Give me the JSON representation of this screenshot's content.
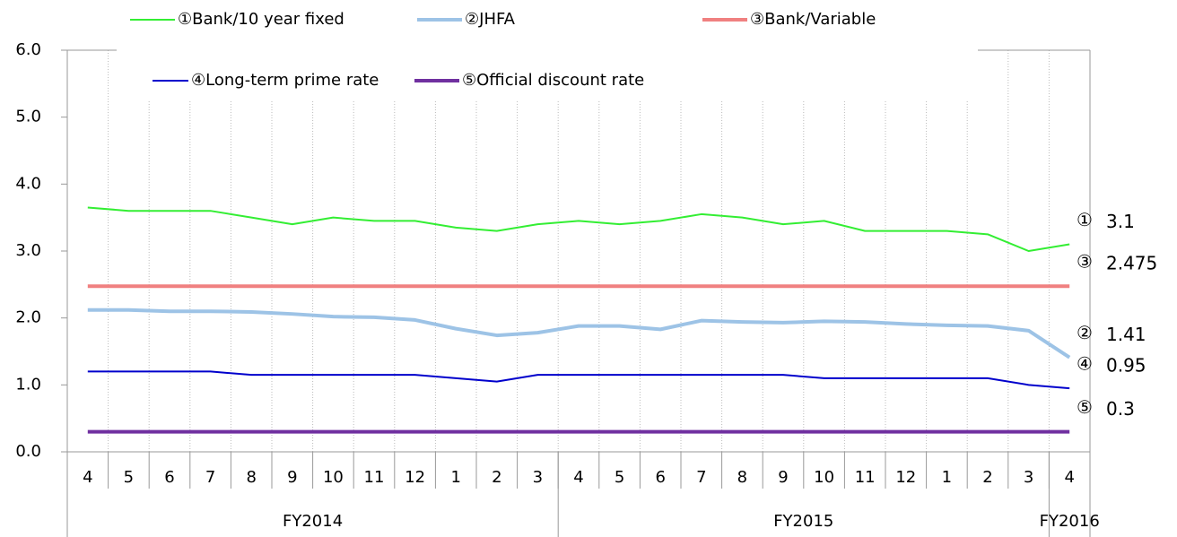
{
  "chart_data": {
    "type": "line",
    "categories": [
      "4",
      "5",
      "6",
      "7",
      "8",
      "9",
      "10",
      "11",
      "12",
      "1",
      "2",
      "3",
      "4",
      "5",
      "6",
      "7",
      "8",
      "9",
      "10",
      "11",
      "12",
      "1",
      "2",
      "3",
      "4"
    ],
    "groups": [
      {
        "label": "FY2014",
        "count": 12
      },
      {
        "label": "FY2015",
        "count": 12
      },
      {
        "label": "FY2016",
        "count": 1
      }
    ],
    "ylim": [
      0,
      6
    ],
    "yticks": [
      {
        "value": 0,
        "label": "0.0"
      },
      {
        "value": 1,
        "label": "1.0"
      },
      {
        "value": 2,
        "label": "2.0"
      },
      {
        "value": 3,
        "label": "3.0"
      },
      {
        "value": 4,
        "label": "4.0"
      },
      {
        "value": 5,
        "label": "5.0"
      },
      {
        "value": 6,
        "label": "6.0"
      }
    ],
    "grid": true,
    "series": [
      {
        "name": "①Bank/10 year fixed",
        "color": "#33ee33",
        "width": 2,
        "values": [
          3.65,
          3.6,
          3.6,
          3.6,
          3.5,
          3.4,
          3.5,
          3.45,
          3.45,
          3.35,
          3.3,
          3.4,
          3.45,
          3.4,
          3.45,
          3.55,
          3.5,
          3.4,
          3.45,
          3.3,
          3.3,
          3.3,
          3.25,
          3.0,
          3.1
        ],
        "end_label": {
          "symbol": "①",
          "text": "3.1"
        }
      },
      {
        "name": "②JHFA",
        "color": "#9dc3e6",
        "width": 4,
        "values": [
          2.12,
          2.12,
          2.1,
          2.1,
          2.09,
          2.06,
          2.02,
          2.01,
          1.97,
          1.84,
          1.74,
          1.78,
          1.88,
          1.88,
          1.83,
          1.96,
          1.94,
          1.93,
          1.95,
          1.94,
          1.91,
          1.89,
          1.88,
          1.81,
          1.41
        ],
        "end_label": {
          "symbol": "②",
          "text": "1.41"
        }
      },
      {
        "name": "③Bank/Variable",
        "color": "#f08080",
        "width": 4,
        "values": [
          2.475,
          2.475,
          2.475,
          2.475,
          2.475,
          2.475,
          2.475,
          2.475,
          2.475,
          2.475,
          2.475,
          2.475,
          2.475,
          2.475,
          2.475,
          2.475,
          2.475,
          2.475,
          2.475,
          2.475,
          2.475,
          2.475,
          2.475,
          2.475,
          2.475
        ],
        "end_label": {
          "symbol": "③",
          "text": "2.475"
        }
      },
      {
        "name": "④Long-term prime rate",
        "color": "#0000cc",
        "width": 2,
        "values": [
          1.2,
          1.2,
          1.2,
          1.2,
          1.15,
          1.15,
          1.15,
          1.15,
          1.15,
          1.1,
          1.05,
          1.15,
          1.15,
          1.15,
          1.15,
          1.15,
          1.15,
          1.15,
          1.1,
          1.1,
          1.1,
          1.1,
          1.1,
          1.0,
          0.95
        ],
        "end_label": {
          "symbol": "④",
          "text": "0.95"
        }
      },
      {
        "name": "⑤Official discount rate",
        "color": "#7030a0",
        "width": 4,
        "values": [
          0.3,
          0.3,
          0.3,
          0.3,
          0.3,
          0.3,
          0.3,
          0.3,
          0.3,
          0.3,
          0.3,
          0.3,
          0.3,
          0.3,
          0.3,
          0.3,
          0.3,
          0.3,
          0.3,
          0.3,
          0.3,
          0.3,
          0.3,
          0.3,
          0.3
        ],
        "end_label": {
          "symbol": "⑤",
          "text": "0.3"
        }
      }
    ]
  }
}
